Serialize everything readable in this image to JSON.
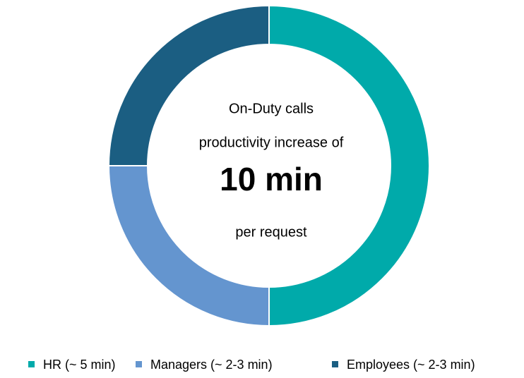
{
  "chart_data": {
    "type": "donut",
    "categories": [
      "HR (~ 5 min)",
      "Managers (~ 2-3 min)",
      "Employees (~ 2-3 min)"
    ],
    "values": [
      50,
      25,
      25
    ],
    "colors": [
      "#00aaaa",
      "#6495cf",
      "#1b5e82"
    ],
    "annotations": [
      "On-Duty calls",
      "productivity increase of",
      "10 min",
      "per request"
    ],
    "legend": "bottom"
  }
}
